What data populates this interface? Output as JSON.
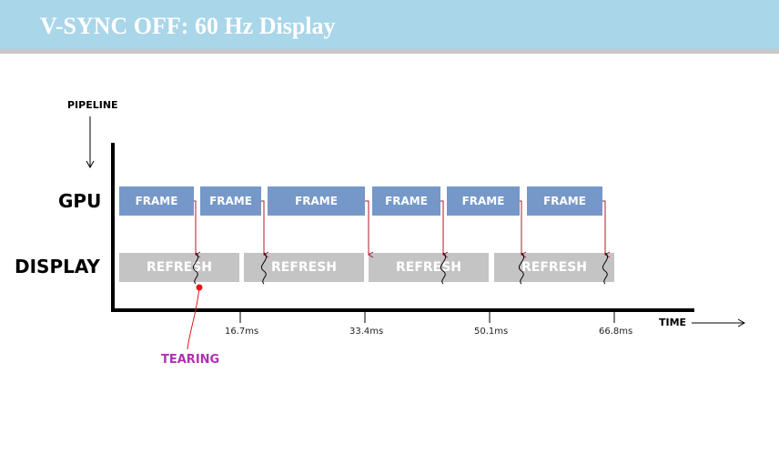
{
  "header": {
    "title": "V-SYNC OFF: 60 Hz Display"
  },
  "labels": {
    "pipeline": "PIPELINE",
    "gpu": "GPU",
    "display": "DISPLAY",
    "time": "TIME",
    "tearing": "TEARING"
  },
  "gpu_frames": [
    {
      "label": "FRAME"
    },
    {
      "label": "FRAME"
    },
    {
      "label": "FRAME"
    },
    {
      "label": "FRAME"
    },
    {
      "label": "FRAME"
    },
    {
      "label": "FRAME"
    }
  ],
  "display_refreshes": [
    {
      "label": "REFRESH"
    },
    {
      "label": "REFRESH"
    },
    {
      "label": "REFRESH"
    },
    {
      "label": "REFRESH"
    }
  ],
  "time_ticks": [
    "16.7ms",
    "33.4ms",
    "50.1ms",
    "66.8ms"
  ],
  "colors": {
    "header_bg": "#a9d6e8",
    "frame": "#7698c8",
    "refresh": "#c4c4c4",
    "arrow": "#b0182a",
    "tearing": "#b030b0",
    "tear_marker": "#e01818"
  }
}
